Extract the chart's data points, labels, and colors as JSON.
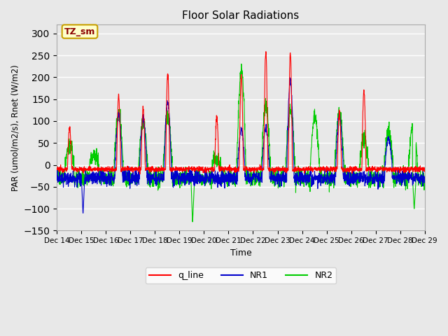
{
  "title": "Floor Solar Radiations",
  "xlabel": "Time",
  "ylabel": "PAR (umol/m2/s), Rnet (W/m2)",
  "ylim": [
    -150,
    320
  ],
  "yticks": [
    -150,
    -100,
    -50,
    0,
    50,
    100,
    150,
    200,
    250,
    300
  ],
  "plot_bg_color": "#e8e8e8",
  "grid_color": "#ffffff",
  "annotation_text": "TZ_sm",
  "annotation_color": "#8b0000",
  "annotation_bg": "#ffffcc",
  "annotation_border": "#c8a000",
  "line_colors": {
    "q_line": "#ff0000",
    "NR1": "#0000cc",
    "NR2": "#00cc00"
  },
  "line_widths": {
    "q_line": 0.8,
    "NR1": 0.8,
    "NR2": 0.8
  },
  "n_days": 15,
  "start_day": 14,
  "points_per_day": 144
}
